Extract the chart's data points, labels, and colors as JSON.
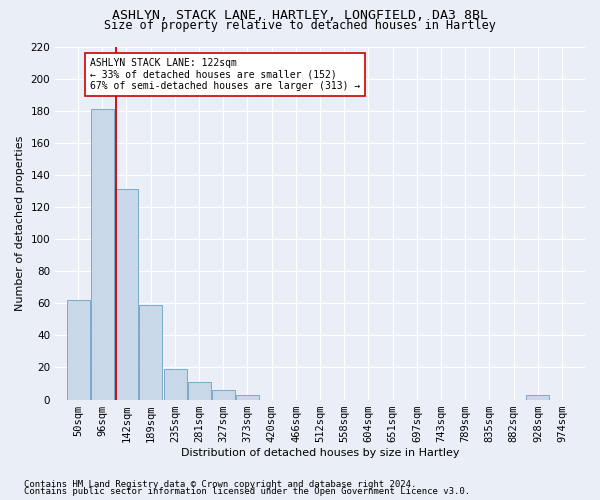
{
  "title1": "ASHLYN, STACK LANE, HARTLEY, LONGFIELD, DA3 8BL",
  "title2": "Size of property relative to detached houses in Hartley",
  "xlabel": "Distribution of detached houses by size in Hartley",
  "ylabel": "Number of detached properties",
  "footer1": "Contains HM Land Registry data © Crown copyright and database right 2024.",
  "footer2": "Contains public sector information licensed under the Open Government Licence v3.0.",
  "bin_labels": [
    "50sqm",
    "96sqm",
    "142sqm",
    "189sqm",
    "235sqm",
    "281sqm",
    "327sqm",
    "373sqm",
    "420sqm",
    "466sqm",
    "512sqm",
    "558sqm",
    "604sqm",
    "651sqm",
    "697sqm",
    "743sqm",
    "789sqm",
    "835sqm",
    "882sqm",
    "928sqm",
    "974sqm"
  ],
  "bin_edges": [
    50,
    96,
    142,
    189,
    235,
    281,
    327,
    373,
    420,
    466,
    512,
    558,
    604,
    651,
    697,
    743,
    789,
    835,
    882,
    928,
    974
  ],
  "bar_heights": [
    62,
    181,
    131,
    59,
    19,
    11,
    6,
    3,
    0,
    0,
    0,
    0,
    0,
    0,
    0,
    0,
    0,
    0,
    0,
    3,
    0
  ],
  "bar_color": "#c8d8e8",
  "bar_edge_color": "#7aaac8",
  "property_size": 122,
  "vline_color": "#cc0000",
  "annotation_line1": "ASHLYN STACK LANE: 122sqm",
  "annotation_line2": "← 33% of detached houses are smaller (152)",
  "annotation_line3": "67% of semi-detached houses are larger (313) →",
  "annotation_box_color": "#ffffff",
  "annotation_box_edge": "#cc0000",
  "ylim_max": 220,
  "yticks": [
    0,
    20,
    40,
    60,
    80,
    100,
    120,
    140,
    160,
    180,
    200,
    220
  ],
  "bg_color": "#eaeff7",
  "grid_color": "#ffffff",
  "title1_fontsize": 9.5,
  "title2_fontsize": 8.5,
  "axis_label_fontsize": 8,
  "tick_fontsize": 7.5,
  "footer_fontsize": 6.5
}
